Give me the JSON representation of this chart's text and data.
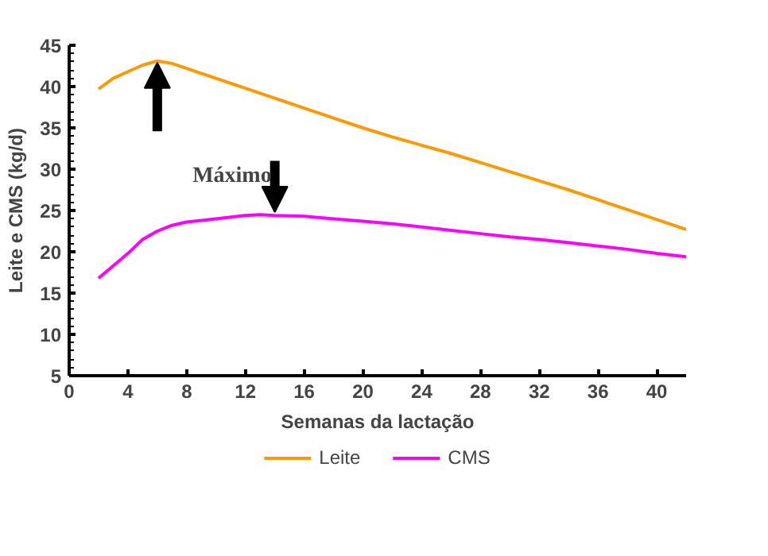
{
  "chart_data": {
    "type": "line",
    "xlabel": "Semanas da lactação",
    "ylabel": "Leite e CMS (kg/d)",
    "x": [
      2,
      3,
      4,
      5,
      6,
      7,
      8,
      10,
      12,
      14,
      16,
      18,
      20,
      22,
      24,
      26,
      28,
      30,
      32,
      34,
      36,
      38,
      40,
      42
    ],
    "series": [
      {
        "name": "Leite",
        "color": "#ff9900",
        "values": [
          39.7,
          41,
          41.8,
          42.6,
          43.1,
          42.8,
          42.2,
          41,
          39.8,
          38.6,
          37.4,
          36.2,
          35,
          33.9,
          32.9,
          31.9,
          30.8,
          29.7,
          28.6,
          27.5,
          26.3,
          25.1,
          23.9,
          22.7
        ]
      },
      {
        "name": "CMS",
        "color": "#ff00ff",
        "x": [
          2,
          3,
          4,
          5,
          6,
          7,
          8,
          10,
          12,
          13,
          14,
          16,
          18,
          20,
          22,
          24,
          26,
          28,
          30,
          32,
          34,
          36,
          38,
          40,
          42
        ],
        "values": [
          16.8,
          18.3,
          19.8,
          21.5,
          22.5,
          23.2,
          23.6,
          24,
          24.4,
          24.5,
          24.4,
          24.3,
          24,
          23.7,
          23.4,
          23,
          22.6,
          22.2,
          21.8,
          21.5,
          21.1,
          20.7,
          20.3,
          19.8,
          19.4
        ]
      }
    ],
    "xlim": [
      0,
      42
    ],
    "ylim": [
      5,
      45
    ],
    "xticks": [
      0,
      4,
      8,
      12,
      16,
      20,
      24,
      28,
      32,
      36,
      40
    ],
    "yticks": [
      5,
      10,
      15,
      20,
      25,
      30,
      35,
      40,
      45
    ],
    "annotations": [
      {
        "text": "Máximo",
        "x": 14,
        "y": 24.5
      }
    ],
    "grid": false,
    "legend": "bottom",
    "marker": "none",
    "line_style": "solid"
  }
}
